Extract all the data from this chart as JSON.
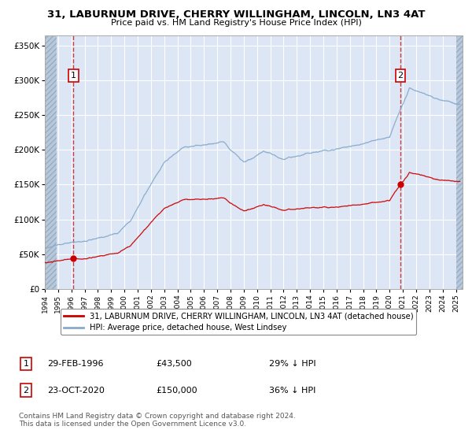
{
  "title1": "31, LABURNUM DRIVE, CHERRY WILLINGHAM, LINCOLN, LN3 4AT",
  "title2": "Price paid vs. HM Land Registry's House Price Index (HPI)",
  "red_label": "31, LABURNUM DRIVE, CHERRY WILLINGHAM, LINCOLN, LN3 4AT (detached house)",
  "blue_label": "HPI: Average price, detached house, West Lindsey",
  "sale1_date": "29-FEB-1996",
  "sale1_price": 43500,
  "sale1_note": "29% ↓ HPI",
  "sale2_date": "23-OCT-2020",
  "sale2_price": 150000,
  "sale2_note": "36% ↓ HPI",
  "sale1_year": 1996.16,
  "sale2_year": 2020.81,
  "ylabel_ticks": [
    0,
    50000,
    100000,
    150000,
    200000,
    250000,
    300000,
    350000
  ],
  "ylabel_labels": [
    "£0",
    "£50K",
    "£100K",
    "£150K",
    "£200K",
    "£250K",
    "£300K",
    "£350K"
  ],
  "xmin": 1994.0,
  "xmax": 2025.5,
  "ymin": 0,
  "ymax": 365000,
  "copyright": "Contains HM Land Registry data © Crown copyright and database right 2024.\nThis data is licensed under the Open Government Licence v3.0.",
  "hatch_left_xmin": 1994.0,
  "hatch_left_xmax": 1994.9,
  "hatch_right_xmin": 2025.0,
  "hatch_right_xmax": 2025.5,
  "background_color": "#ffffff",
  "plot_bg_color": "#dce6f5",
  "red_color": "#cc0000",
  "blue_color": "#88aacc",
  "grid_color": "#ffffff",
  "hatch_color": "#b8c8dc"
}
